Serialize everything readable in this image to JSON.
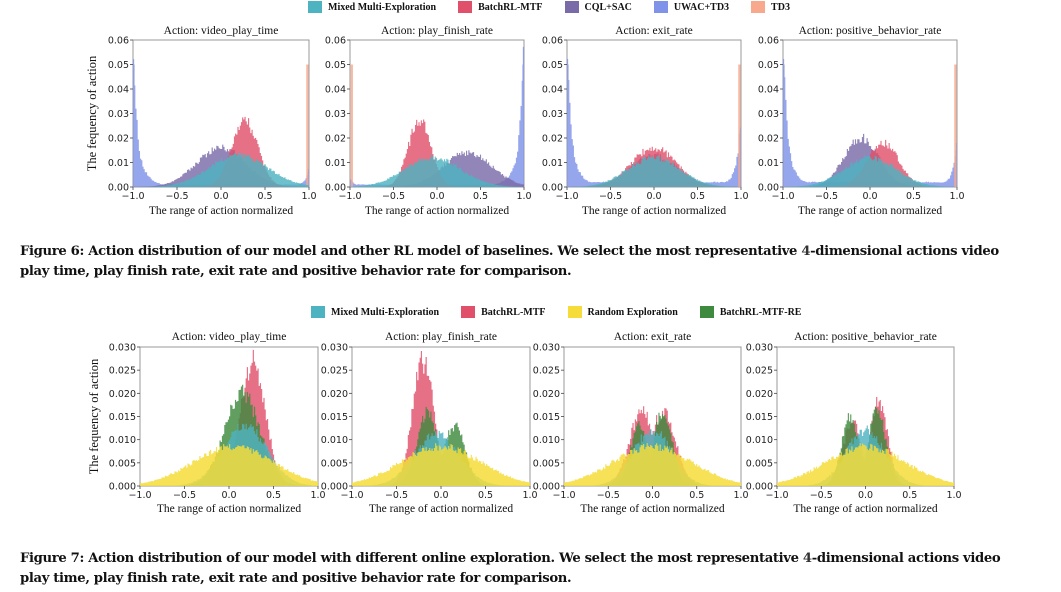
{
  "figure6": {
    "legend": [
      {
        "label": "Mixed Multi-Exploration",
        "color": "#4eb3c1"
      },
      {
        "label": "BatchRL-MTF",
        "color": "#e0506b"
      },
      {
        "label": "CQL+SAC",
        "color": "#7a6aa8"
      },
      {
        "label": "UWAC+TD3",
        "color": "#7f93e8"
      },
      {
        "label": "TD3",
        "color": "#f8a88c"
      }
    ],
    "caption_prefix": "Figure 6: Action distribution of our model and other RL model of baselines. We select the most representative ",
    "caption_num": "4",
    "caption_suffix": "-dimensional actions video play time, play finish rate, exit rate and positive behavior rate for comparison."
  },
  "figure7": {
    "legend": [
      {
        "label": "Mixed Multi-Exploration",
        "color": "#4eb3c1"
      },
      {
        "label": "BatchRL-MTF",
        "color": "#e0506b"
      },
      {
        "label": "Random Exploration",
        "color": "#f5dc3a"
      },
      {
        "label": "BatchRL-MTF-RE",
        "color": "#3e8a3e"
      }
    ],
    "caption_prefix": "Figure 7: Action distribution of our model with different online exploration. We select the most representative ",
    "caption_num": "4",
    "caption_suffix": "-dimensional actions video play time, play finish rate, exit rate and positive behavior rate for comparison."
  },
  "chart_data": [
    {
      "type": "bar",
      "figure": "Figure 6",
      "title": "Action: video_play_time",
      "xlabel": "The range of action normalized",
      "ylabel": "The fequency of action",
      "xlim": [
        -1.0,
        1.0
      ],
      "ylim": [
        0,
        0.06
      ],
      "xticks": [
        "−1.0",
        "−0.5",
        "0.0",
        "0.5",
        "1.0"
      ],
      "yticks": [
        "0.00",
        "0.01",
        "0.02",
        "0.03",
        "0.04",
        "0.05",
        "0.06"
      ],
      "series": [
        {
          "name": "UWAC+TD3",
          "shape": "u-shape",
          "peak_left": 0.05,
          "peak_right": 0.006,
          "center_floor": 0.001
        },
        {
          "name": "TD3",
          "shape": "spike",
          "spikes": [
            {
              "x": 0.98,
              "y": 0.05
            }
          ]
        },
        {
          "name": "CQL+SAC",
          "shape": "bell",
          "mean": 0.0,
          "sd": 0.28,
          "peak": 0.016
        },
        {
          "name": "BatchRL-MTF",
          "shape": "bell",
          "mean": 0.27,
          "sd": 0.15,
          "peak": 0.027
        },
        {
          "name": "Mixed Multi-Exploration",
          "shape": "bell",
          "mean": 0.2,
          "sd": 0.33,
          "peak": 0.013
        }
      ]
    },
    {
      "type": "bar",
      "figure": "Figure 6",
      "title": "Action: play_finish_rate",
      "xlabel": "The range of action normalized",
      "ylabel": "",
      "xlim": [
        -1.0,
        1.0
      ],
      "ylim": [
        0,
        0.06
      ],
      "xticks": [
        "−1.0",
        "−0.5",
        "0.0",
        "0.5",
        "1.0"
      ],
      "yticks": [
        "0.00",
        "0.01",
        "0.02",
        "0.03",
        "0.04",
        "0.05",
        "0.06"
      ],
      "series": [
        {
          "name": "UWAC+TD3",
          "shape": "u-shape",
          "peak_left": 0.003,
          "peak_right": 0.05,
          "center_floor": 0.001
        },
        {
          "name": "TD3",
          "shape": "spike",
          "spikes": [
            {
              "x": -0.98,
              "y": 0.05
            }
          ]
        },
        {
          "name": "CQL+SAC",
          "shape": "bell",
          "mean": 0.35,
          "sd": 0.28,
          "peak": 0.014
        },
        {
          "name": "BatchRL-MTF",
          "shape": "bell",
          "mean": -0.2,
          "sd": 0.13,
          "peak": 0.027
        },
        {
          "name": "Mixed Multi-Exploration",
          "shape": "bell",
          "mean": -0.05,
          "sd": 0.32,
          "peak": 0.012
        }
      ]
    },
    {
      "type": "bar",
      "figure": "Figure 6",
      "title": "Action: exit_rate",
      "xlabel": "The range of action normalized",
      "ylabel": "",
      "xlim": [
        -1.0,
        1.0
      ],
      "ylim": [
        0,
        0.06
      ],
      "xticks": [
        "−1.0",
        "−0.5",
        "0.0",
        "0.5",
        "1.0"
      ],
      "yticks": [
        "0.00",
        "0.01",
        "0.02",
        "0.03",
        "0.04",
        "0.05",
        "0.06"
      ],
      "series": [
        {
          "name": "UWAC+TD3",
          "shape": "u-shape",
          "peak_left": 0.05,
          "peak_right": 0.023,
          "center_floor": 0.002
        },
        {
          "name": "TD3",
          "shape": "spike",
          "spikes": [
            {
              "x": 0.98,
              "y": 0.05
            }
          ]
        },
        {
          "name": "CQL+SAC",
          "shape": "bell",
          "mean": 0.0,
          "sd": 0.27,
          "peak": 0.013
        },
        {
          "name": "BatchRL-MTF",
          "shape": "bell",
          "mean": 0.0,
          "sd": 0.26,
          "peak": 0.016
        },
        {
          "name": "Mixed Multi-Exploration",
          "shape": "bell",
          "mean": 0.0,
          "sd": 0.3,
          "peak": 0.012
        }
      ]
    },
    {
      "type": "bar",
      "figure": "Figure 6",
      "title": "Action: positive_behavior_rate",
      "xlabel": "The range of action normalized",
      "ylabel": "",
      "xlim": [
        -1.0,
        1.0
      ],
      "ylim": [
        0,
        0.06
      ],
      "xticks": [
        "−1.0",
        "−0.5",
        "0.0",
        "0.5",
        "1.0"
      ],
      "yticks": [
        "0.00",
        "0.01",
        "0.02",
        "0.03",
        "0.04",
        "0.05",
        "0.06"
      ],
      "series": [
        {
          "name": "UWAC+TD3",
          "shape": "u-shape",
          "peak_left": 0.05,
          "peak_right": 0.015,
          "center_floor": 0.002
        },
        {
          "name": "TD3",
          "shape": "spike",
          "spikes": [
            {
              "x": 0.98,
              "y": 0.05
            }
          ]
        },
        {
          "name": "CQL+SAC",
          "shape": "bell",
          "mean": -0.1,
          "sd": 0.2,
          "peak": 0.02
        },
        {
          "name": "BatchRL-MTF",
          "shape": "bell",
          "mean": 0.15,
          "sd": 0.18,
          "peak": 0.018
        },
        {
          "name": "Mixed Multi-Exploration",
          "shape": "bell",
          "mean": 0.0,
          "sd": 0.3,
          "peak": 0.012
        }
      ]
    },
    {
      "type": "bar",
      "figure": "Figure 7",
      "title": "Action: video_play_time",
      "xlabel": "The range of action normalized",
      "ylabel": "The fequency of action",
      "xlim": [
        -1.0,
        1.0
      ],
      "ylim": [
        0,
        0.03
      ],
      "xticks": [
        "−1.0",
        "−0.5",
        "0.0",
        "0.5",
        "1.0"
      ],
      "yticks": [
        "0.000",
        "0.005",
        "0.010",
        "0.015",
        "0.020",
        "0.025",
        "0.030"
      ],
      "series": [
        {
          "name": "BatchRL-MTF",
          "shape": "bell",
          "mean": 0.27,
          "sd": 0.14,
          "peak": 0.027
        },
        {
          "name": "BatchRL-MTF-RE",
          "shape": "bell",
          "mean": 0.15,
          "sd": 0.2,
          "peak": 0.02
        },
        {
          "name": "Mixed Multi-Exploration",
          "shape": "bell",
          "mean": 0.18,
          "sd": 0.25,
          "peak": 0.013
        },
        {
          "name": "Random Exploration",
          "shape": "bell",
          "mean": 0.05,
          "sd": 0.45,
          "peak": 0.0085
        }
      ]
    },
    {
      "type": "bar",
      "figure": "Figure 7",
      "title": "Action: play_finish_rate",
      "xlabel": "The range of action normalized",
      "ylabel": "",
      "xlim": [
        -1.0,
        1.0
      ],
      "ylim": [
        0,
        0.03
      ],
      "xticks": [
        "−1.0",
        "−0.5",
        "0.0",
        "0.5",
        "1.0"
      ],
      "yticks": [
        "0.000",
        "0.005",
        "0.010",
        "0.015",
        "0.020",
        "0.025",
        "0.030"
      ],
      "series": [
        {
          "name": "BatchRL-MTF",
          "shape": "bell",
          "mean": -0.2,
          "sd": 0.12,
          "peak": 0.027
        },
        {
          "name": "BatchRL-MTF-RE",
          "shape": "bimodal",
          "modes": [
            {
              "mean": -0.15,
              "sd": 0.12,
              "peak": 0.016
            },
            {
              "mean": 0.15,
              "sd": 0.12,
              "peak": 0.013
            }
          ]
        },
        {
          "name": "Mixed Multi-Exploration",
          "shape": "bell",
          "mean": -0.05,
          "sd": 0.25,
          "peak": 0.011
        },
        {
          "name": "Random Exploration",
          "shape": "bell",
          "mean": 0.0,
          "sd": 0.45,
          "peak": 0.0085
        }
      ]
    },
    {
      "type": "bar",
      "figure": "Figure 7",
      "title": "Action: exit_rate",
      "xlabel": "The range of action normalized",
      "ylabel": "",
      "xlim": [
        -1.0,
        1.0
      ],
      "ylim": [
        0,
        0.03
      ],
      "xticks": [
        "−1.0",
        "−0.5",
        "0.0",
        "0.5",
        "1.0"
      ],
      "yticks": [
        "0.000",
        "0.005",
        "0.010",
        "0.015",
        "0.020",
        "0.025",
        "0.030"
      ],
      "series": [
        {
          "name": "BatchRL-MTF",
          "shape": "bimodal",
          "modes": [
            {
              "mean": -0.12,
              "sd": 0.14,
              "peak": 0.016
            },
            {
              "mean": 0.12,
              "sd": 0.14,
              "peak": 0.016
            }
          ]
        },
        {
          "name": "BatchRL-MTF-RE",
          "shape": "bimodal",
          "modes": [
            {
              "mean": -0.15,
              "sd": 0.1,
              "peak": 0.013
            },
            {
              "mean": 0.12,
              "sd": 0.1,
              "peak": 0.0165
            }
          ]
        },
        {
          "name": "Mixed Multi-Exploration",
          "shape": "bell",
          "mean": 0.0,
          "sd": 0.22,
          "peak": 0.012
        },
        {
          "name": "Random Exploration",
          "shape": "bell",
          "mean": 0.0,
          "sd": 0.45,
          "peak": 0.0085
        }
      ]
    },
    {
      "type": "bar",
      "figure": "Figure 7",
      "title": "Action: positive_behavior_rate",
      "xlabel": "The range of action normalized",
      "ylabel": "",
      "xlim": [
        -1.0,
        1.0
      ],
      "ylim": [
        0,
        0.03
      ],
      "xticks": [
        "−1.0",
        "−0.5",
        "0.0",
        "0.5",
        "1.0"
      ],
      "yticks": [
        "0.000",
        "0.005",
        "0.010",
        "0.015",
        "0.020",
        "0.025",
        "0.030"
      ],
      "series": [
        {
          "name": "BatchRL-MTF",
          "shape": "bimodal",
          "modes": [
            {
              "mean": -0.15,
              "sd": 0.1,
              "peak": 0.014
            },
            {
              "mean": 0.15,
              "sd": 0.1,
              "peak": 0.018
            }
          ]
        },
        {
          "name": "BatchRL-MTF-RE",
          "shape": "bimodal",
          "modes": [
            {
              "mean": -0.17,
              "sd": 0.1,
              "peak": 0.015
            },
            {
              "mean": 0.13,
              "sd": 0.1,
              "peak": 0.016
            }
          ]
        },
        {
          "name": "Mixed Multi-Exploration",
          "shape": "bell",
          "mean": 0.0,
          "sd": 0.22,
          "peak": 0.012
        },
        {
          "name": "Random Exploration",
          "shape": "bell",
          "mean": 0.0,
          "sd": 0.45,
          "peak": 0.0085
        }
      ]
    }
  ]
}
